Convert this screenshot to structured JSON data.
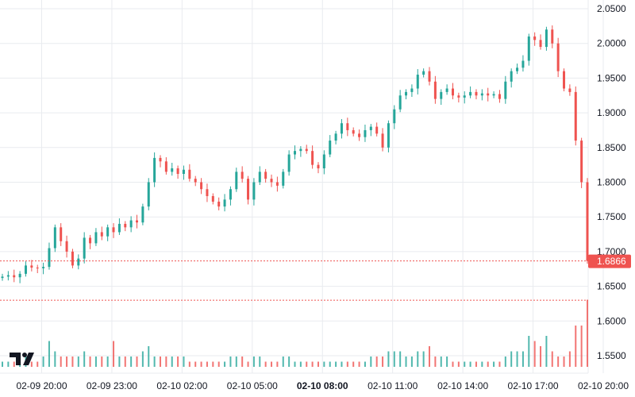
{
  "chart_data": {
    "type": "candlestick",
    "title": "",
    "bar_interval": "15 min",
    "ylim": [
      1.54,
      2.062
    ],
    "price_ticks": [
      "2.0500",
      "2.0000",
      "1.9500",
      "1.9000",
      "1.8500",
      "1.8000",
      "1.7500",
      "1.7000",
      "1.6500",
      "1.6000",
      "1.5500"
    ],
    "time_ticks": [
      {
        "label": "02-09 20:00",
        "bar": 4,
        "bold": false
      },
      {
        "label": "02-09 23:00",
        "bar": 16,
        "bold": false
      },
      {
        "label": "02-10 02:00",
        "bar": 28,
        "bold": false
      },
      {
        "label": "02-10 05:00",
        "bar": 40,
        "bold": false
      },
      {
        "label": "02-10 08:00",
        "bar": 52,
        "bold": true
      },
      {
        "label": "02-10 11:00",
        "bar": 64,
        "bold": false
      },
      {
        "label": "02-10 14:00",
        "bar": 76,
        "bold": false
      },
      {
        "label": "02-10 17:00",
        "bar": 88,
        "bold": false
      },
      {
        "label": "02-10 20:00",
        "bar": 100,
        "bold": false
      }
    ],
    "first_open": 1.662,
    "close": [
      1.664,
      1.666,
      1.663,
      1.668,
      1.68,
      1.677,
      1.676,
      1.678,
      1.705,
      1.735,
      1.715,
      1.7,
      1.68,
      1.69,
      1.72,
      1.712,
      1.728,
      1.722,
      1.735,
      1.728,
      1.74,
      1.735,
      1.745,
      1.742,
      1.765,
      1.8,
      1.835,
      1.83,
      1.815,
      1.82,
      1.812,
      1.818,
      1.805,
      1.8,
      1.79,
      1.78,
      1.772,
      1.765,
      1.775,
      1.79,
      1.815,
      1.805,
      1.775,
      1.8,
      1.815,
      1.805,
      1.8,
      1.795,
      1.815,
      1.84,
      1.845,
      1.848,
      1.845,
      1.825,
      1.82,
      1.84,
      1.86,
      1.87,
      1.885,
      1.875,
      1.87,
      1.865,
      1.875,
      1.88,
      1.87,
      1.85,
      1.885,
      1.905,
      1.925,
      1.93,
      1.935,
      1.955,
      1.96,
      1.945,
      1.92,
      1.93,
      1.935,
      1.925,
      1.922,
      1.925,
      1.93,
      1.925,
      1.928,
      1.925,
      1.927,
      1.92,
      1.945,
      1.96,
      1.965,
      1.975,
      2.01,
      2.005,
      1.995,
      2.02,
      2.0,
      1.96,
      1.935,
      1.93,
      1.86,
      1.8,
      1.6866
    ],
    "volume": [
      1,
      1,
      1,
      1,
      2,
      1,
      1,
      2,
      5,
      3,
      2,
      2,
      2,
      2,
      3,
      2,
      2,
      2,
      2,
      5,
      2,
      2,
      2,
      2,
      3,
      4,
      2,
      2,
      2,
      2,
      2,
      2,
      1,
      1,
      1,
      1,
      1,
      1,
      1,
      2,
      2,
      2,
      1,
      2,
      2,
      1,
      1,
      1,
      2,
      2,
      1,
      1,
      1,
      1,
      1,
      1,
      1,
      1,
      1,
      1,
      1,
      1,
      1,
      2,
      2,
      2,
      3,
      3,
      3,
      2,
      2,
      3,
      3,
      4,
      2,
      2,
      2,
      1,
      1,
      1,
      1,
      1,
      1,
      1,
      1,
      1,
      2,
      3,
      3,
      3,
      6,
      5,
      4,
      6,
      3,
      2,
      2,
      3,
      8,
      8,
      13
    ],
    "last_price": {
      "label": "1.6866",
      "value": 1.6866
    },
    "reference_line": 1.63,
    "colors": {
      "up": "#26a69a",
      "down": "#ef5350",
      "grid": "#e9ebef",
      "text": "#131722",
      "watermark": "#131722"
    },
    "watermark": "TV"
  }
}
